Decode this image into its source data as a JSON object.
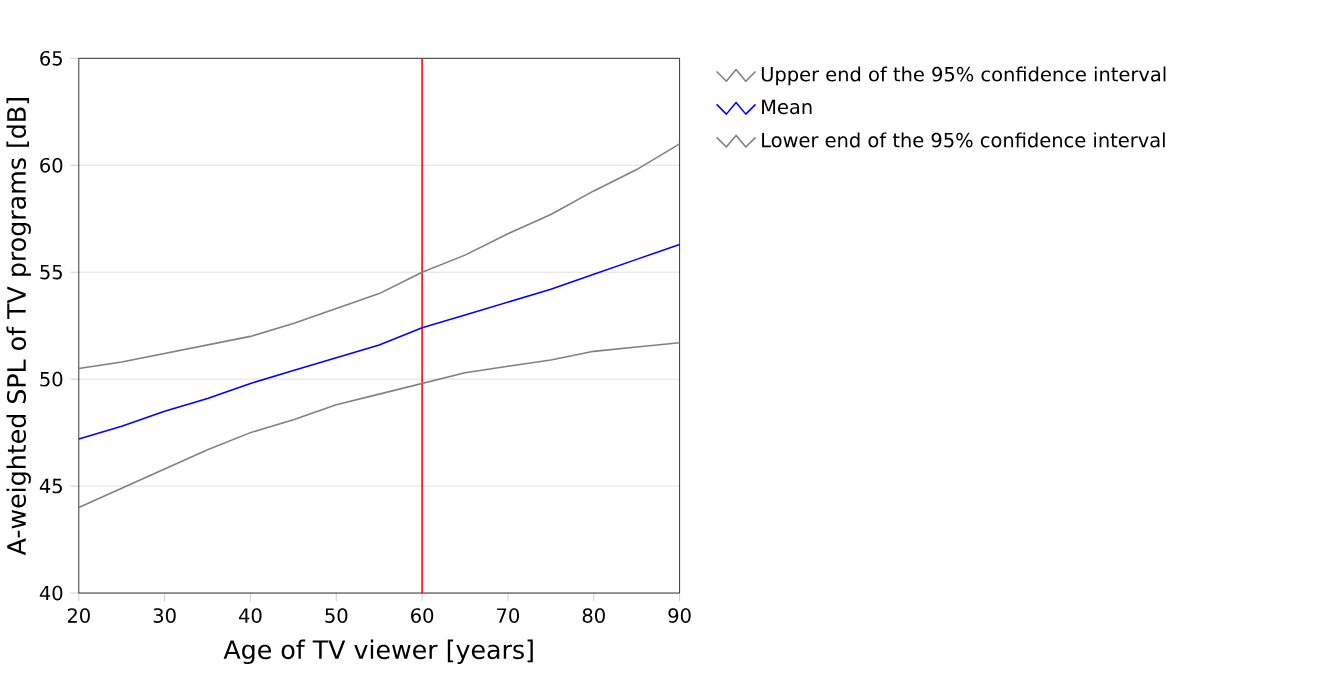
{
  "chart_data": {
    "type": "line",
    "xlabel": "Age of TV viewer [years]",
    "ylabel": "A-weighted SPL of TV programs [dB]",
    "x": [
      20,
      25,
      30,
      35,
      40,
      45,
      50,
      55,
      60,
      65,
      70,
      75,
      80,
      85,
      90
    ],
    "series": [
      {
        "name": "Upper end of the 95% confidence interval",
        "color": "#808080",
        "values": [
          50.5,
          50.8,
          51.2,
          51.6,
          52.0,
          52.6,
          53.3,
          54.0,
          55.0,
          55.8,
          56.8,
          57.7,
          58.8,
          59.8,
          61.0
        ]
      },
      {
        "name": "Mean",
        "color": "#0000ff",
        "values": [
          47.2,
          47.8,
          48.5,
          49.1,
          49.8,
          50.4,
          51.0,
          51.6,
          52.4,
          53.0,
          53.6,
          54.2,
          54.9,
          55.6,
          56.3
        ]
      },
      {
        "name": "Lower end of the 95% confidence interval",
        "color": "#808080",
        "values": [
          44.0,
          44.9,
          45.8,
          46.7,
          47.5,
          48.1,
          48.8,
          49.3,
          49.8,
          50.3,
          50.6,
          50.9,
          51.3,
          51.5,
          51.7
        ]
      }
    ],
    "xlim": [
      20,
      90
    ],
    "xticks": [
      20,
      30,
      40,
      50,
      60,
      70,
      80,
      90
    ],
    "ylim": [
      40,
      65
    ],
    "yticks": [
      40,
      45,
      50,
      55,
      60,
      65
    ],
    "ref_lines": [
      {
        "axis": "x",
        "value": 60,
        "color": "#ff0000"
      }
    ],
    "grid": "y",
    "legend": "top right",
    "marker": "none",
    "line_style": "solid"
  }
}
